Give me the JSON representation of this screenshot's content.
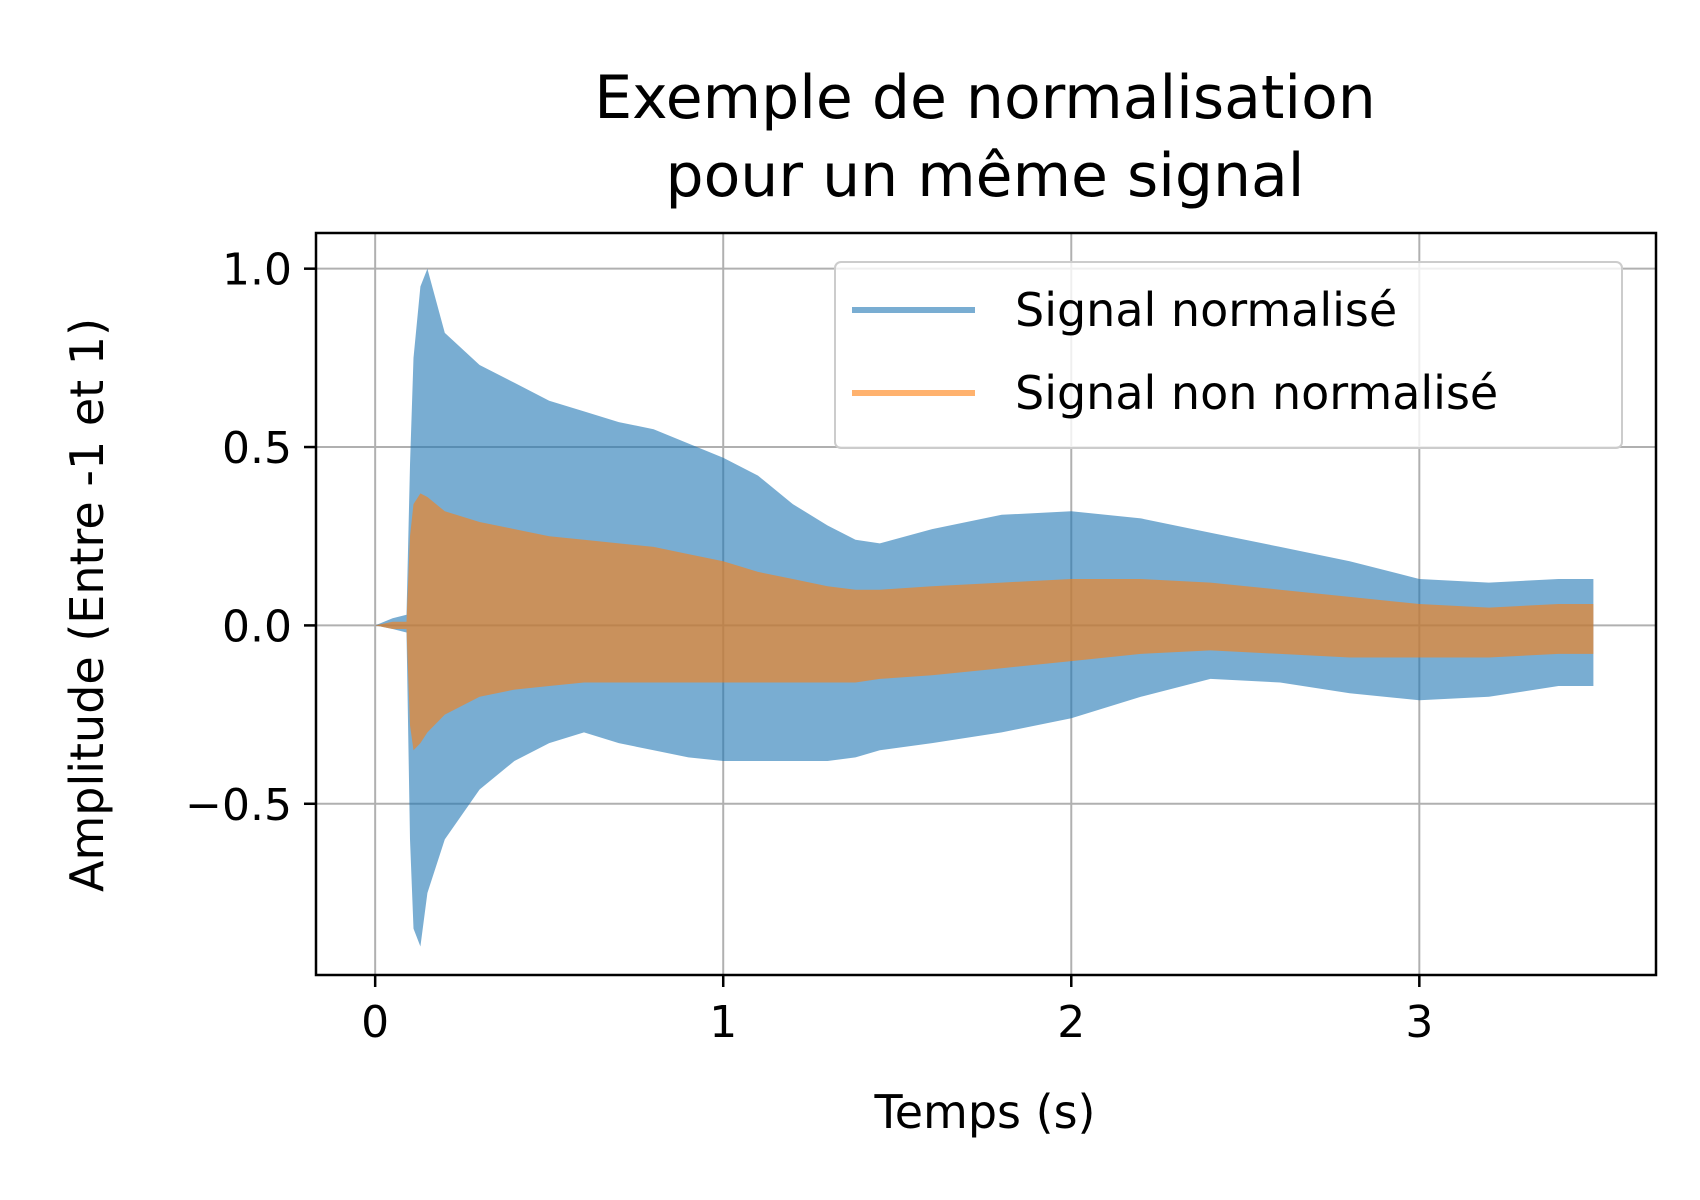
{
  "chart_data": {
    "type": "area",
    "title_lines": [
      "Exemple de normalisation",
      "pour un même signal"
    ],
    "xlabel": "Temps (s)",
    "ylabel": "Amplitude (Entre -1 et 1)",
    "xlim": [
      -0.17,
      3.68
    ],
    "ylim": [
      -0.98,
      1.1
    ],
    "xticks": [
      0,
      1,
      2,
      3
    ],
    "xtick_labels": [
      "0",
      "1",
      "2",
      "3"
    ],
    "yticks": [
      1.0,
      0.5,
      0.0,
      -0.5
    ],
    "ytick_labels": [
      "1.0",
      "0.5",
      "0.0",
      "−0.5"
    ],
    "grid": true,
    "legend_position": "top-right",
    "series": [
      {
        "name": "Signal normalisé",
        "color": "#1f77b4",
        "opacity": 0.6,
        "x": [
          0.0,
          0.05,
          0.09,
          0.1,
          0.11,
          0.13,
          0.15,
          0.2,
          0.3,
          0.4,
          0.5,
          0.6,
          0.7,
          0.8,
          0.9,
          1.0,
          1.1,
          1.2,
          1.3,
          1.38,
          1.45,
          1.6,
          1.8,
          2.0,
          2.2,
          2.4,
          2.6,
          2.8,
          3.0,
          3.2,
          3.4,
          3.5
        ],
        "upper": [
          0.0,
          0.02,
          0.03,
          0.45,
          0.75,
          0.95,
          1.0,
          0.82,
          0.73,
          0.68,
          0.63,
          0.6,
          0.57,
          0.55,
          0.51,
          0.47,
          0.42,
          0.34,
          0.28,
          0.24,
          0.23,
          0.27,
          0.31,
          0.32,
          0.3,
          0.26,
          0.22,
          0.18,
          0.13,
          0.12,
          0.13,
          0.13
        ],
        "lower": [
          0.0,
          -0.01,
          -0.02,
          -0.6,
          -0.85,
          -0.9,
          -0.75,
          -0.6,
          -0.46,
          -0.38,
          -0.33,
          -0.3,
          -0.33,
          -0.35,
          -0.37,
          -0.38,
          -0.38,
          -0.38,
          -0.38,
          -0.37,
          -0.35,
          -0.33,
          -0.3,
          -0.26,
          -0.2,
          -0.15,
          -0.16,
          -0.19,
          -0.21,
          -0.2,
          -0.17,
          -0.17
        ]
      },
      {
        "name": "Signal non normalisé",
        "color": "#ff7f0e",
        "opacity": 0.6,
        "x": [
          0.0,
          0.05,
          0.09,
          0.1,
          0.11,
          0.13,
          0.15,
          0.2,
          0.3,
          0.4,
          0.5,
          0.6,
          0.7,
          0.8,
          0.9,
          1.0,
          1.1,
          1.2,
          1.3,
          1.38,
          1.45,
          1.6,
          1.8,
          2.0,
          2.2,
          2.4,
          2.6,
          2.8,
          3.0,
          3.2,
          3.4,
          3.5
        ],
        "upper": [
          0.0,
          0.01,
          0.01,
          0.25,
          0.34,
          0.37,
          0.36,
          0.32,
          0.29,
          0.27,
          0.25,
          0.24,
          0.23,
          0.22,
          0.2,
          0.18,
          0.15,
          0.13,
          0.11,
          0.1,
          0.1,
          0.11,
          0.12,
          0.13,
          0.13,
          0.12,
          0.1,
          0.08,
          0.06,
          0.05,
          0.06,
          0.06
        ],
        "lower": [
          0.0,
          -0.01,
          -0.01,
          -0.28,
          -0.35,
          -0.33,
          -0.3,
          -0.25,
          -0.2,
          -0.18,
          -0.17,
          -0.16,
          -0.16,
          -0.16,
          -0.16,
          -0.16,
          -0.16,
          -0.16,
          -0.16,
          -0.16,
          -0.15,
          -0.14,
          -0.12,
          -0.1,
          -0.08,
          -0.07,
          -0.08,
          -0.09,
          -0.09,
          -0.09,
          -0.08,
          -0.08
        ]
      }
    ]
  }
}
